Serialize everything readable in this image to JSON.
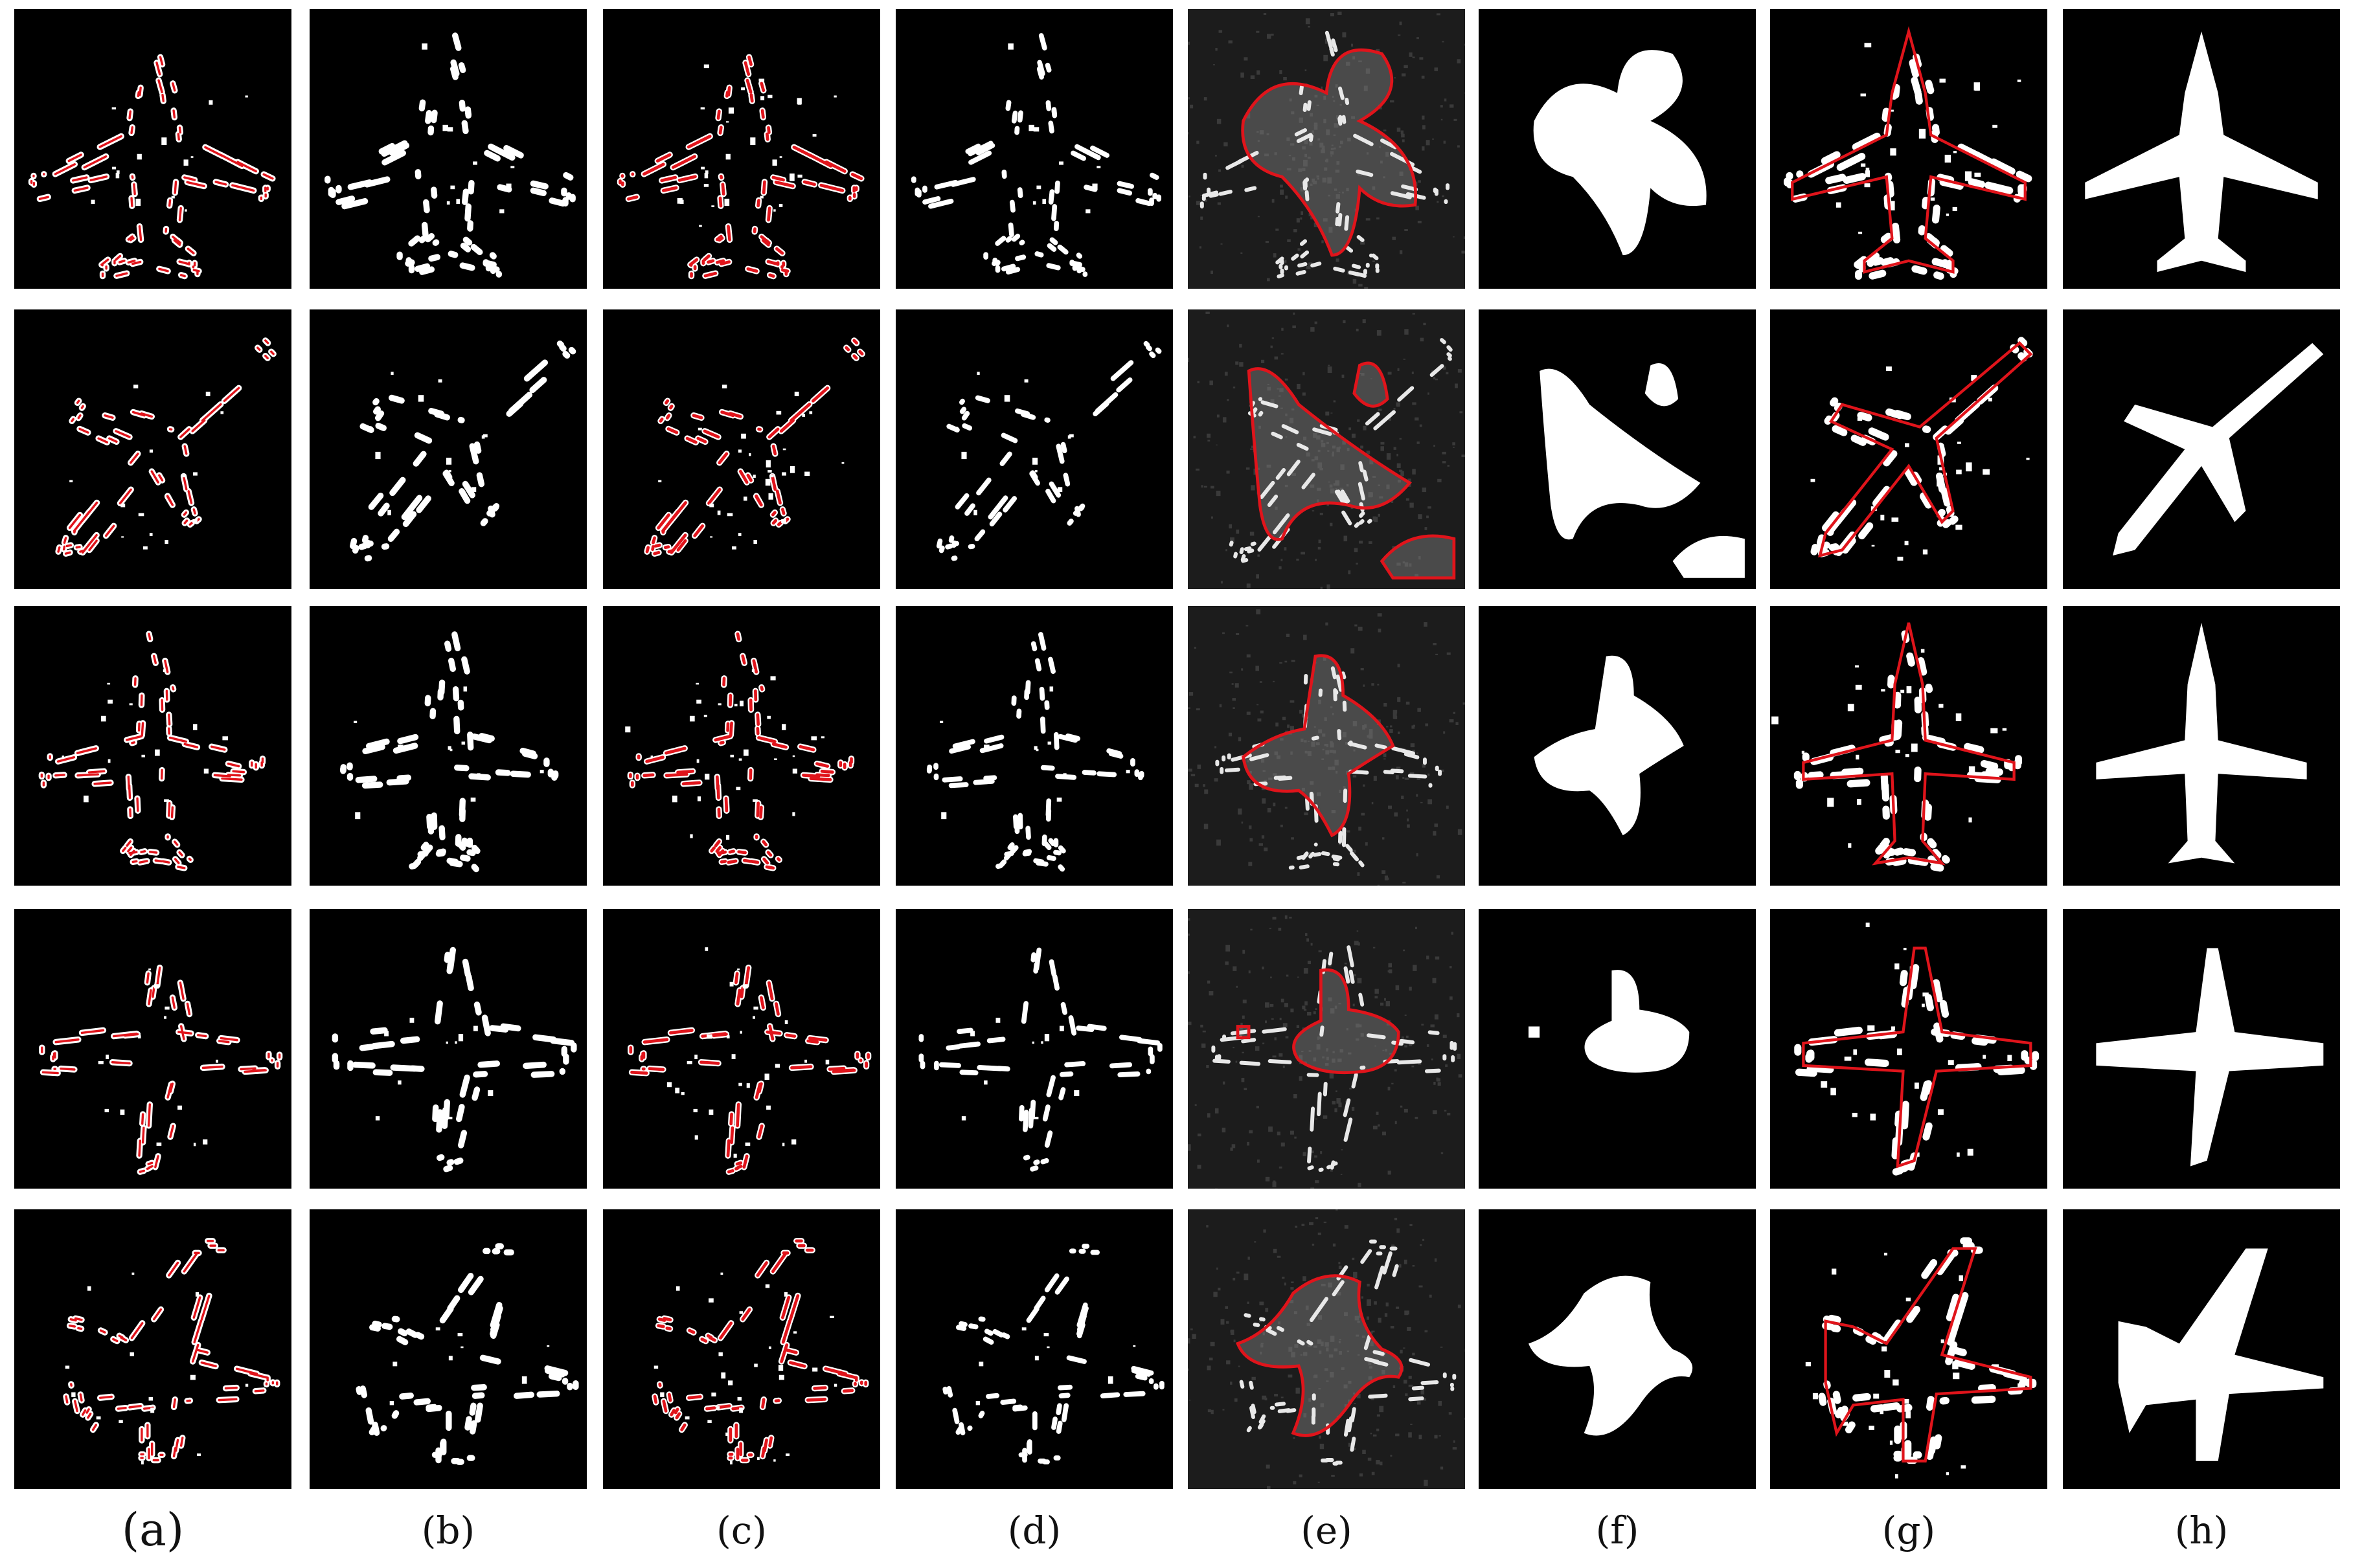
{
  "figure": {
    "column_labels": [
      "(a)",
      "(b)",
      "(c)",
      "(d)",
      "(e)",
      "(f)",
      "(g)",
      "(h)"
    ],
    "rows": 5,
    "columns": 8,
    "colors": {
      "background": "#ffffff",
      "tile": "#000000",
      "sar_tile": "#1c1c1c",
      "mask": "#ffffff",
      "contour": "#e0141b"
    }
  }
}
